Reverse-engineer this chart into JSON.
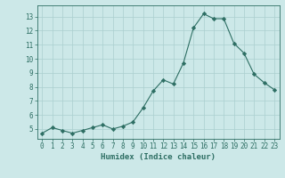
{
  "x": [
    0,
    1,
    2,
    3,
    4,
    5,
    6,
    7,
    8,
    9,
    10,
    11,
    12,
    13,
    14,
    15,
    16,
    17,
    18,
    19,
    20,
    21,
    22,
    23
  ],
  "y": [
    4.7,
    5.1,
    4.9,
    4.7,
    4.9,
    5.1,
    5.3,
    5.0,
    5.2,
    5.5,
    6.5,
    7.7,
    8.5,
    8.2,
    9.7,
    12.2,
    13.2,
    12.85,
    12.85,
    11.1,
    10.4,
    8.9,
    8.3,
    7.8
  ],
  "xlabel": "Humidex (Indice chaleur)",
  "xlim": [
    -0.5,
    23.5
  ],
  "ylim": [
    4.3,
    13.8
  ],
  "yticks": [
    5,
    6,
    7,
    8,
    9,
    10,
    11,
    12,
    13
  ],
  "xticks": [
    0,
    1,
    2,
    3,
    4,
    5,
    6,
    7,
    8,
    9,
    10,
    11,
    12,
    13,
    14,
    15,
    16,
    17,
    18,
    19,
    20,
    21,
    22,
    23
  ],
  "line_color": "#2d6e63",
  "marker": "D",
  "marker_size": 2.2,
  "bg_color": "#cce8e8",
  "grid_color": "#aacfcf",
  "label_fontsize": 6.5,
  "tick_fontsize": 5.5
}
